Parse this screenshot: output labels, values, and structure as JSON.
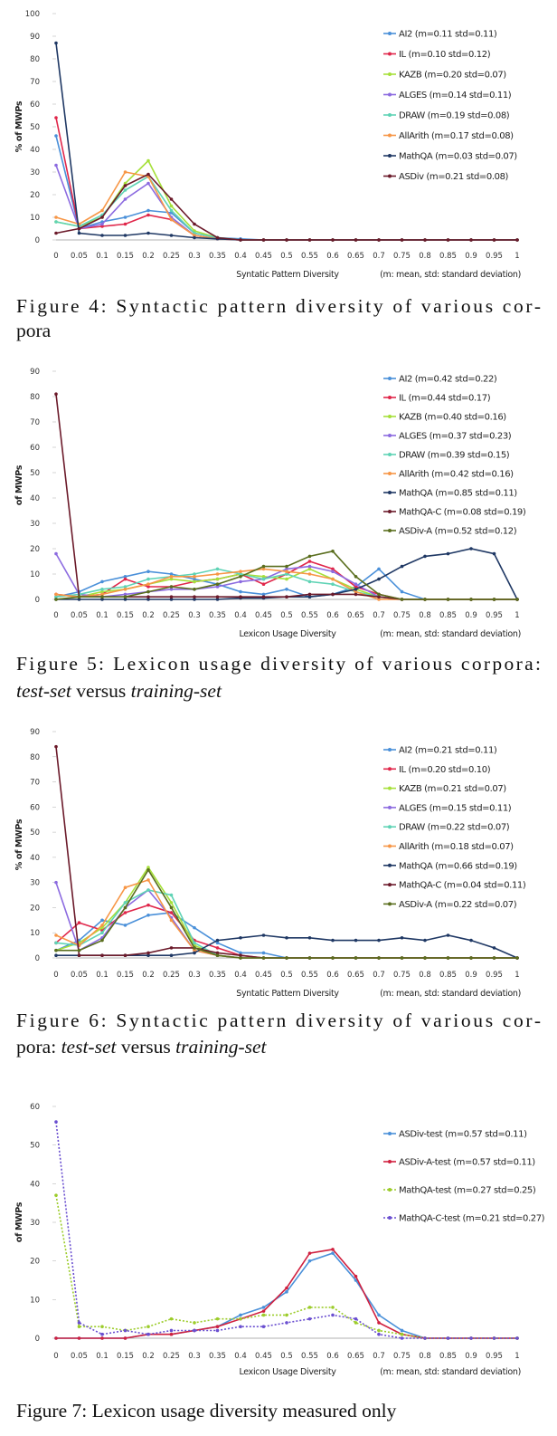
{
  "chart_data": [
    {
      "type": "line",
      "ylabel": "% of MWPs",
      "xlabel": "Syntatic Pattern Diversity",
      "note": "(m: mean, std: standard deviation)",
      "categories": [
        "0",
        "0.05",
        "0.1",
        "0.15",
        "0.2",
        "0.25",
        "0.3",
        "0.35",
        "0.4",
        "0.45",
        "0.5",
        "0.55",
        "0.6",
        "0.65",
        "0.7",
        "0.75",
        "0.8",
        "0.85",
        "0.9",
        "0.95",
        "1"
      ],
      "ylim": [
        0,
        100
      ],
      "yticks": [
        0,
        10,
        20,
        30,
        40,
        50,
        60,
        70,
        80,
        90,
        100
      ],
      "legend": "upper right",
      "series": [
        {
          "name": "AI2 (m=0.11 std=0.11)",
          "color": "#4a90d9",
          "values": [
            46,
            5,
            8,
            10,
            13,
            12,
            3,
            1,
            0.5,
            0,
            0,
            0,
            0,
            0,
            0,
            0,
            0,
            0,
            0,
            0,
            0
          ]
        },
        {
          "name": "IL (m=0.10 std=0.12)",
          "color": "#e0264a",
          "values": [
            54,
            5,
            6,
            7,
            11,
            9,
            2,
            0.5,
            0,
            0,
            0,
            0,
            0,
            0,
            0,
            0,
            0,
            0,
            0,
            0,
            0
          ]
        },
        {
          "name": "KAZB (m=0.20 std=0.07)",
          "color": "#a6e03a",
          "values": [
            8,
            6,
            10,
            25,
            35,
            15,
            4,
            1,
            0,
            0,
            0,
            0,
            0,
            0,
            0,
            0,
            0,
            0,
            0,
            0,
            0
          ]
        },
        {
          "name": "ALGES (m=0.14 std=0.11)",
          "color": "#8c6be0",
          "values": [
            33,
            5,
            7,
            18,
            25,
            10,
            2,
            0.5,
            0,
            0,
            0,
            0,
            0,
            0,
            0,
            0,
            0,
            0,
            0,
            0,
            0
          ]
        },
        {
          "name": "DRAW (m=0.19 std=0.08)",
          "color": "#5fd3b5",
          "values": [
            8,
            6,
            11,
            22,
            28,
            13,
            3,
            1,
            0,
            0,
            0,
            0,
            0,
            0,
            0,
            0,
            0,
            0,
            0,
            0,
            0
          ]
        },
        {
          "name": "AllArith (m=0.17 std=0.08)",
          "color": "#f79646",
          "values": [
            10,
            7,
            13,
            30,
            28,
            9,
            2,
            0.5,
            0,
            0,
            0,
            0,
            0,
            0,
            0,
            0,
            0,
            0,
            0,
            0,
            0
          ]
        },
        {
          "name": "MathQA (m=0.03 std=0.07)",
          "color": "#1f3864",
          "values": [
            87,
            3,
            2,
            2,
            3,
            2,
            1,
            0.5,
            0,
            0,
            0,
            0,
            0,
            0,
            0,
            0,
            0,
            0,
            0,
            0,
            0
          ]
        },
        {
          "name": "ASDiv (m=0.21 std=0.08)",
          "color": "#6b1a2a",
          "values": [
            3,
            5,
            10,
            24,
            29,
            18,
            7,
            1,
            0,
            0,
            0,
            0,
            0,
            0,
            0,
            0,
            0,
            0,
            0,
            0,
            0
          ]
        }
      ]
    },
    {
      "type": "line",
      "ylabel": "of MWPs",
      "xlabel": "Lexicon Usage Diversity",
      "note": "(m: mean, std: standard deviation)",
      "categories": [
        "0",
        "0.05",
        "0.1",
        "0.15",
        "0.2",
        "0.25",
        "0.3",
        "0.35",
        "0.4",
        "0.45",
        "0.5",
        "0.55",
        "0.6",
        "0.65",
        "0.7",
        "0.75",
        "0.8",
        "0.85",
        "0.9",
        "0.95",
        "1"
      ],
      "ylim": [
        0,
        90
      ],
      "yticks": [
        0,
        10,
        20,
        30,
        40,
        50,
        60,
        70,
        80,
        90
      ],
      "legend": "upper right",
      "series": [
        {
          "name": "AI2 (m=0.42 std=0.22)",
          "color": "#4a90d9",
          "values": [
            1,
            3,
            7,
            9,
            11,
            10,
            8,
            6,
            3,
            2,
            4,
            1,
            2,
            5,
            12,
            3,
            0,
            0,
            0,
            0,
            0
          ]
        },
        {
          "name": "IL (m=0.44 std=0.17)",
          "color": "#e0264a",
          "values": [
            2,
            1,
            2,
            8,
            5,
            5,
            7,
            8,
            10,
            6,
            10,
            15,
            12,
            5,
            2,
            0,
            0,
            0,
            0,
            0,
            0
          ]
        },
        {
          "name": "KAZB (m=0.40 std=0.16)",
          "color": "#a6e03a",
          "values": [
            0,
            1,
            3,
            4,
            6,
            8,
            7,
            8,
            10,
            9,
            8,
            12,
            8,
            4,
            1,
            0,
            0,
            0,
            0,
            0,
            0
          ]
        },
        {
          "name": "ALGES (m=0.37 std=0.23)",
          "color": "#8c6be0",
          "values": [
            18,
            2,
            1,
            2,
            3,
            4,
            4,
            5,
            7,
            8,
            12,
            13,
            11,
            6,
            1,
            0,
            0,
            0,
            0,
            0,
            0
          ]
        },
        {
          "name": "DRAW (m=0.39 std=0.15)",
          "color": "#5fd3b5",
          "values": [
            1,
            2,
            4,
            5,
            8,
            9,
            10,
            12,
            10,
            8,
            10,
            7,
            6,
            3,
            1,
            0,
            0,
            0,
            0,
            0,
            0
          ]
        },
        {
          "name": "AllArith (m=0.42 std=0.16)",
          "color": "#f79646",
          "values": [
            2,
            1,
            2,
            4,
            6,
            9,
            9,
            10,
            11,
            12,
            11,
            10,
            8,
            3,
            0,
            0,
            0,
            0,
            0,
            0,
            0
          ]
        },
        {
          "name": "MathQA (m=0.85 std=0.11)",
          "color": "#1f3864",
          "values": [
            0,
            0,
            0,
            0,
            0,
            0,
            0,
            0,
            0.5,
            0.5,
            1,
            1,
            2,
            4,
            8,
            13,
            17,
            18,
            20,
            18,
            0
          ]
        },
        {
          "name": "MathQA-C (m=0.08 std=0.19)",
          "color": "#6b1a2a",
          "values": [
            81,
            1,
            1,
            1,
            1,
            1,
            1,
            1,
            1,
            1,
            1,
            2,
            2,
            2,
            1,
            0,
            0,
            0,
            0,
            0,
            0
          ]
        },
        {
          "name": "ASDiv-A (m=0.52 std=0.12)",
          "color": "#5a6e1e",
          "values": [
            0,
            1,
            1,
            1,
            3,
            5,
            4,
            6,
            9,
            13,
            13,
            17,
            19,
            9,
            2,
            0,
            0,
            0,
            0,
            0,
            0
          ]
        }
      ]
    },
    {
      "type": "line",
      "ylabel": "% of MWPs",
      "xlabel": "Syntatic Pattern Diversity",
      "note": "(m: mean, std: standard deviation)",
      "categories": [
        "0",
        "0.05",
        "0.1",
        "0.15",
        "0.2",
        "0.25",
        "0.3",
        "0.35",
        "0.4",
        "0.45",
        "0.5",
        "0.55",
        "0.6",
        "0.65",
        "0.7",
        "0.75",
        "0.8",
        "0.85",
        "0.9",
        "0.95",
        "1"
      ],
      "ylim": [
        0,
        90
      ],
      "yticks": [
        0,
        10,
        20,
        30,
        40,
        50,
        60,
        70,
        80,
        90
      ],
      "legend": "upper right",
      "series": [
        {
          "name": "AI2 (m=0.21 std=0.11)",
          "color": "#4a90d9",
          "values": [
            3,
            7,
            15,
            13,
            17,
            18,
            12,
            6,
            2,
            2,
            0,
            0,
            0,
            0,
            0,
            0,
            0,
            0,
            0,
            0,
            0
          ]
        },
        {
          "name": "IL (m=0.20 std=0.10)",
          "color": "#e0264a",
          "values": [
            6,
            14,
            11,
            18,
            21,
            18,
            7,
            4,
            1,
            0,
            0,
            0,
            0,
            0,
            0,
            0,
            0,
            0,
            0,
            0,
            0
          ]
        },
        {
          "name": "KAZB (m=0.21 std=0.07)",
          "color": "#a6e03a",
          "values": [
            3,
            6,
            12,
            22,
            36,
            22,
            5,
            1,
            0,
            0,
            0,
            0,
            0,
            0,
            0,
            0,
            0,
            0,
            0,
            0,
            0
          ]
        },
        {
          "name": "ALGES (m=0.15 std=0.11)",
          "color": "#8c6be0",
          "values": [
            30,
            3,
            8,
            20,
            27,
            16,
            3,
            1,
            0,
            0,
            0,
            0,
            0,
            0,
            0,
            0,
            0,
            0,
            0,
            0,
            0
          ]
        },
        {
          "name": "DRAW (m=0.22 std=0.07)",
          "color": "#5fd3b5",
          "values": [
            6,
            5,
            10,
            22,
            27,
            25,
            6,
            1,
            0,
            0,
            0,
            0,
            0,
            0,
            0,
            0,
            0,
            0,
            0,
            0,
            0
          ]
        },
        {
          "name": "AllArith (m=0.18 std=0.07)",
          "color": "#f79646",
          "values": [
            9,
            5,
            13,
            28,
            31,
            15,
            3,
            1,
            0,
            0,
            0,
            0,
            0,
            0,
            0,
            0,
            0,
            0,
            0,
            0,
            0
          ]
        },
        {
          "name": "MathQA (m=0.66 std=0.19)",
          "color": "#1f3864",
          "values": [
            1,
            1,
            1,
            1,
            1,
            1,
            2,
            7,
            8,
            9,
            8,
            8,
            7,
            7,
            7,
            8,
            7,
            9,
            7,
            4,
            0
          ]
        },
        {
          "name": "MathQA-C (m=0.04 std=0.11)",
          "color": "#6b1a2a",
          "values": [
            84,
            1,
            1,
            1,
            2,
            4,
            4,
            2,
            1,
            0,
            0,
            0,
            0,
            0,
            0,
            0,
            0,
            0,
            0,
            0,
            0
          ]
        },
        {
          "name": "ASDiv-A (m=0.22 std=0.07)",
          "color": "#5a6e1e",
          "values": [
            3,
            3,
            7,
            20,
            35,
            20,
            4,
            1,
            0,
            0,
            0,
            0,
            0,
            0,
            0,
            0,
            0,
            0,
            0,
            0,
            0
          ]
        }
      ]
    },
    {
      "type": "line",
      "ylabel": "of MWPs",
      "xlabel": "Lexicon Usage Diversity",
      "note": "(m: mean, std: standard deviation)",
      "categories": [
        "0",
        "0.05",
        "0.1",
        "0.15",
        "0.2",
        "0.25",
        "0.3",
        "0.35",
        "0.4",
        "0.45",
        "0.5",
        "0.55",
        "0.6",
        "0.65",
        "0.7",
        "0.75",
        "0.8",
        "0.85",
        "0.9",
        "0.95",
        "1"
      ],
      "ylim": [
        0,
        60
      ],
      "yticks": [
        0,
        10,
        20,
        30,
        40,
        50,
        60
      ],
      "legend": "upper right",
      "series": [
        {
          "name": "ASDiv-test (m=0.57 std=0.11)",
          "color": "#4a90d9",
          "linestyle": "solid",
          "values": [
            0,
            0,
            0,
            0,
            1,
            1,
            2,
            3,
            6,
            8,
            12,
            20,
            22,
            15,
            6,
            2,
            0,
            0,
            0,
            0,
            0
          ]
        },
        {
          "name": "ASDiv-A-test (m=0.57 std=0.11)",
          "color": "#d0203f",
          "linestyle": "solid",
          "values": [
            0,
            0,
            0,
            0,
            1,
            1,
            2,
            3,
            5,
            7,
            13,
            22,
            23,
            16,
            4,
            1,
            0,
            0,
            0,
            0,
            0
          ]
        },
        {
          "name": "MathQA-test (m=0.27 std=0.25)",
          "color": "#9ccc2a",
          "linestyle": "dotted",
          "values": [
            37,
            3,
            3,
            2,
            3,
            5,
            4,
            5,
            5,
            6,
            6,
            8,
            8,
            4,
            2,
            1,
            0,
            0,
            0,
            0,
            0
          ]
        },
        {
          "name": "MathQA-C-test (m=0.21 std=0.27)",
          "color": "#6a4fd0",
          "linestyle": "dotted",
          "values": [
            56,
            4,
            1,
            2,
            1,
            2,
            2,
            2,
            3,
            3,
            4,
            5,
            6,
            5,
            1,
            0,
            0,
            0,
            0,
            0,
            0
          ]
        }
      ]
    }
  ],
  "captions": [
    {
      "lines": [
        [
          {
            "text": "Figure 4: Syntactic pattern diversity of various cor-",
            "italic": false
          }
        ],
        [
          {
            "text": "pora",
            "italic": false
          }
        ]
      ]
    },
    {
      "lines": [
        [
          {
            "text": "Figure 5: Lexicon usage diversity of various corpora:",
            "italic": false
          }
        ],
        [
          {
            "text": "test-set",
            "italic": true
          },
          {
            "text": " versus ",
            "italic": false
          },
          {
            "text": "training-set",
            "italic": true
          }
        ]
      ]
    },
    {
      "lines": [
        [
          {
            "text": "Figure 6: Syntactic pattern diversity of various cor-",
            "italic": false
          }
        ],
        [
          {
            "text": "pora: ",
            "italic": false
          },
          {
            "text": "test-set",
            "italic": true
          },
          {
            "text": " versus ",
            "italic": false
          },
          {
            "text": "training-set",
            "italic": true
          }
        ]
      ]
    },
    {
      "lines": [
        [
          {
            "text": "Figure 7: Lexicon usage diversity measured only",
            "italic": false
          }
        ]
      ]
    }
  ]
}
